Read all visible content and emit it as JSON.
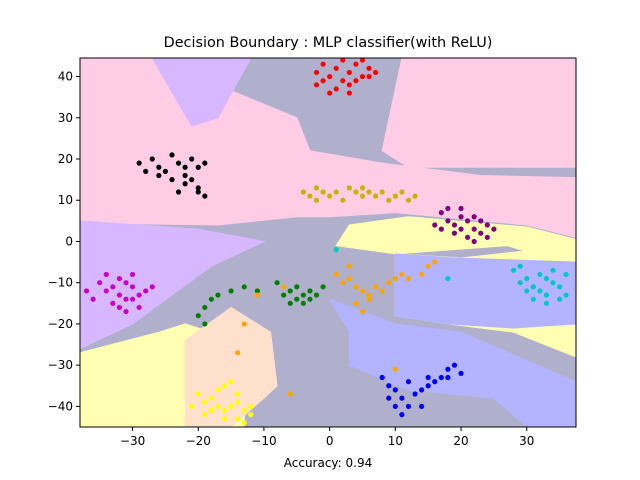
{
  "chart_data": {
    "type": "scatter",
    "title": "Decision Boundary : MLP classifier(with ReLU)",
    "xlabel": "Accuracy: 0.94",
    "ylabel": "",
    "xlim": [
      -38,
      37.5
    ],
    "ylim": [
      -45,
      44.5
    ],
    "xticks": [
      -30,
      -20,
      -10,
      0,
      10,
      20,
      30
    ],
    "yticks": [
      -40,
      -30,
      -20,
      -10,
      0,
      10,
      20,
      30,
      40
    ],
    "grid": false,
    "regions": [
      {
        "color": "#b0b0cc",
        "polygon": [
          [
            -38,
            -45
          ],
          [
            37.5,
            -45
          ],
          [
            37.5,
            44.5
          ],
          [
            -38,
            44.5
          ]
        ]
      },
      {
        "color": "#ffcce6",
        "polygon": [
          [
            -38,
            44.5
          ],
          [
            -27,
            44.5
          ],
          [
            -5,
            30
          ],
          [
            -3,
            22
          ],
          [
            8,
            19
          ],
          [
            23,
            16
          ],
          [
            37.5,
            15.5
          ],
          [
            37.5,
            1
          ],
          [
            30,
            4
          ],
          [
            10,
            7
          ],
          [
            0,
            6
          ],
          [
            -5,
            6
          ],
          [
            -17,
            4
          ],
          [
            -38,
            4.5
          ]
        ]
      },
      {
        "color": "#ffcce6",
        "polygon": [
          [
            11,
            44.5
          ],
          [
            37.5,
            44.5
          ],
          [
            37.5,
            18
          ],
          [
            12,
            18
          ],
          [
            8,
            22
          ]
        ]
      },
      {
        "color": "#d7b7ff",
        "polygon": [
          [
            -27,
            44.5
          ],
          [
            -12,
            44.5
          ],
          [
            -17,
            30
          ],
          [
            -21,
            28
          ]
        ]
      },
      {
        "color": "#d7b7ff",
        "polygon": [
          [
            -38,
            5
          ],
          [
            -20,
            3
          ],
          [
            -10,
            0
          ],
          [
            -18,
            -6
          ],
          [
            -30,
            -20
          ],
          [
            -38,
            -26
          ]
        ]
      },
      {
        "color": "#ffffb3",
        "polygon": [
          [
            3,
            4
          ],
          [
            12,
            6
          ],
          [
            30,
            3.5
          ],
          [
            37.5,
            0.5
          ],
          [
            37.5,
            -6
          ],
          [
            27,
            -1
          ],
          [
            10,
            -3
          ],
          [
            1,
            -1
          ]
        ]
      },
      {
        "color": "#ffffb3",
        "polygon": [
          [
            37.5,
            12
          ],
          [
            37.5,
            -1
          ],
          [
            20,
            -4
          ],
          [
            10,
            -3
          ],
          [
            10,
            -18
          ],
          [
            18,
            -20
          ],
          [
            28,
            -22
          ],
          [
            37.5,
            -28
          ]
        ]
      },
      {
        "color": "#ffffb3",
        "polygon": [
          [
            -38,
            -27
          ],
          [
            -26,
            -22
          ],
          [
            -22,
            -20
          ],
          [
            -38,
            -30
          ]
        ]
      },
      {
        "color": "#ffffb3",
        "polygon": [
          [
            -38,
            -30
          ],
          [
            -22,
            -20
          ],
          [
            -18,
            -22
          ],
          [
            -13,
            -40
          ],
          [
            -13,
            -45
          ],
          [
            -38,
            -45
          ]
        ]
      },
      {
        "color": "#ffe0cc",
        "polygon": [
          [
            -22,
            -24
          ],
          [
            -15,
            -16
          ],
          [
            -9,
            -22
          ],
          [
            -8,
            -35
          ],
          [
            -10,
            -38
          ],
          [
            -15,
            -45
          ],
          [
            -22,
            -45
          ]
        ]
      },
      {
        "color": "#b3b3ff",
        "polygon": [
          [
            0,
            -14
          ],
          [
            10,
            -20
          ],
          [
            20,
            -22
          ],
          [
            37.5,
            -34
          ],
          [
            37.5,
            -45
          ],
          [
            30,
            -45
          ],
          [
            25,
            -38
          ],
          [
            12,
            -36
          ],
          [
            3,
            -30
          ],
          [
            3,
            -22
          ]
        ]
      },
      {
        "color": "#b3b3ff",
        "polygon": [
          [
            10,
            -3
          ],
          [
            19,
            -4
          ],
          [
            37.5,
            -5
          ],
          [
            37.5,
            -20
          ],
          [
            28,
            -21
          ],
          [
            18,
            -20
          ],
          [
            10,
            -18
          ]
        ]
      }
    ],
    "series": [
      {
        "color": "#ff0000",
        "points": [
          [
            -2,
            41
          ],
          [
            -1,
            43
          ],
          [
            0,
            40
          ],
          [
            1,
            42
          ],
          [
            2,
            44
          ],
          [
            3,
            41
          ],
          [
            4,
            43
          ],
          [
            5,
            40
          ],
          [
            6,
            42
          ],
          [
            7,
            41
          ],
          [
            -1,
            39
          ],
          [
            1,
            37
          ],
          [
            3,
            38
          ],
          [
            0,
            36
          ],
          [
            2,
            39
          ],
          [
            4,
            39
          ],
          [
            5,
            44
          ],
          [
            6,
            40
          ],
          [
            -2,
            38
          ],
          [
            3,
            36
          ]
        ]
      },
      {
        "color": "#000000",
        "points": [
          [
            -29,
            19
          ],
          [
            -27,
            20
          ],
          [
            -26,
            18
          ],
          [
            -25,
            17
          ],
          [
            -24,
            21
          ],
          [
            -23,
            19
          ],
          [
            -22,
            18
          ],
          [
            -21,
            20
          ],
          [
            -20,
            18
          ],
          [
            -19,
            19
          ],
          [
            -21,
            15
          ],
          [
            -20,
            13
          ],
          [
            -22,
            14
          ],
          [
            -23,
            12
          ],
          [
            -19,
            11
          ],
          [
            -20,
            12
          ],
          [
            -26,
            16
          ],
          [
            -28,
            17
          ],
          [
            -24,
            15
          ],
          [
            -22,
            16
          ]
        ]
      },
      {
        "color": "#c8b400",
        "points": [
          [
            -4,
            12
          ],
          [
            -3,
            11
          ],
          [
            -2,
            10
          ],
          [
            -1,
            12
          ],
          [
            0,
            11
          ],
          [
            1,
            12
          ],
          [
            2,
            10
          ],
          [
            3,
            13
          ],
          [
            4,
            12
          ],
          [
            5,
            13
          ],
          [
            6,
            12
          ],
          [
            7,
            11
          ],
          [
            8,
            12
          ],
          [
            9,
            10
          ],
          [
            10,
            11
          ],
          [
            11,
            12
          ],
          [
            12,
            10
          ],
          [
            13,
            11
          ],
          [
            -2,
            13
          ],
          [
            5,
            11
          ]
        ]
      },
      {
        "color": "#800080",
        "points": [
          [
            17,
            7
          ],
          [
            18,
            5
          ],
          [
            19,
            4
          ],
          [
            20,
            6
          ],
          [
            21,
            5
          ],
          [
            22,
            3
          ],
          [
            23,
            2
          ],
          [
            18,
            8
          ],
          [
            20,
            8
          ],
          [
            22,
            6
          ],
          [
            23,
            5
          ],
          [
            24,
            4
          ],
          [
            21,
            1
          ],
          [
            19,
            2
          ],
          [
            17,
            3
          ],
          [
            16,
            4
          ],
          [
            24,
            1
          ],
          [
            25,
            3
          ],
          [
            20,
            3
          ],
          [
            22,
            0
          ]
        ]
      },
      {
        "color": "#c800c8",
        "points": [
          [
            -35,
            -10
          ],
          [
            -34,
            -12
          ],
          [
            -33,
            -11
          ],
          [
            -32,
            -13
          ],
          [
            -31,
            -10
          ],
          [
            -30,
            -11
          ],
          [
            -29,
            -13
          ],
          [
            -31,
            -14
          ],
          [
            -33,
            -15
          ],
          [
            -32,
            -16
          ],
          [
            -30,
            -14
          ],
          [
            -28,
            -12
          ],
          [
            -34,
            -8
          ],
          [
            -32,
            -9
          ],
          [
            -29,
            -16
          ],
          [
            -27,
            -11
          ],
          [
            -37,
            -12
          ],
          [
            -36,
            -14
          ],
          [
            -31,
            -17
          ],
          [
            -30,
            -8
          ]
        ]
      },
      {
        "color": "#008000",
        "points": [
          [
            -17,
            -13
          ],
          [
            -15,
            -12
          ],
          [
            -13,
            -11
          ],
          [
            -11,
            -12
          ],
          [
            -7,
            -13
          ],
          [
            -6,
            -12
          ],
          [
            -5,
            -11
          ],
          [
            -4,
            -13
          ],
          [
            -6,
            -15
          ],
          [
            -5,
            -14
          ],
          [
            -3,
            -12
          ],
          [
            -2,
            -13
          ],
          [
            -1,
            -11
          ],
          [
            -4,
            -15
          ],
          [
            -3,
            -14
          ],
          [
            -18,
            -14
          ],
          [
            -19,
            -16
          ],
          [
            -20,
            -18
          ],
          [
            -19,
            -20
          ],
          [
            -8,
            -10
          ]
        ]
      },
      {
        "color": "#ffa500",
        "points": [
          [
            1,
            -8
          ],
          [
            2,
            -10
          ],
          [
            3,
            -9
          ],
          [
            4,
            -11
          ],
          [
            5,
            -12
          ],
          [
            6,
            -13
          ],
          [
            7,
            -11
          ],
          [
            8,
            -12
          ],
          [
            9,
            -10
          ],
          [
            10,
            -9
          ],
          [
            11,
            -8
          ],
          [
            12,
            -9
          ],
          [
            14,
            -8
          ],
          [
            15,
            -6
          ],
          [
            16,
            -5
          ],
          [
            3,
            -6
          ],
          [
            4,
            -15
          ],
          [
            5,
            -17
          ],
          [
            6,
            -14
          ],
          [
            -7,
            -11
          ]
        ]
      },
      {
        "color": "#00c8c8",
        "points": [
          [
            28,
            -7
          ],
          [
            29,
            -10
          ],
          [
            30,
            -12
          ],
          [
            31,
            -11
          ],
          [
            32,
            -8
          ],
          [
            33,
            -9
          ],
          [
            34,
            -10
          ],
          [
            35,
            -11
          ],
          [
            36,
            -8
          ],
          [
            31,
            -14
          ],
          [
            33,
            -15
          ],
          [
            35,
            -14
          ],
          [
            29,
            -6
          ],
          [
            32,
            -12
          ],
          [
            34,
            -7
          ],
          [
            36,
            -13
          ],
          [
            30,
            -9
          ],
          [
            33,
            -13
          ],
          [
            1,
            -2
          ],
          [
            18,
            -9
          ]
        ]
      },
      {
        "color": "#0000ff",
        "points": [
          [
            8,
            -33
          ],
          [
            9,
            -35
          ],
          [
            10,
            -36
          ],
          [
            11,
            -38
          ],
          [
            12,
            -34
          ],
          [
            13,
            -37
          ],
          [
            14,
            -36
          ],
          [
            15,
            -35
          ],
          [
            16,
            -34
          ],
          [
            17,
            -33
          ],
          [
            18,
            -31
          ],
          [
            19,
            -30
          ],
          [
            20,
            -32
          ],
          [
            12,
            -40
          ],
          [
            14,
            -40
          ],
          [
            10,
            -40
          ],
          [
            11,
            -42
          ],
          [
            15,
            -33
          ],
          [
            18,
            -33
          ],
          [
            9,
            -38
          ]
        ]
      },
      {
        "color": "#ffff00",
        "points": [
          [
            -20,
            -37
          ],
          [
            -19,
            -39
          ],
          [
            -18,
            -38
          ],
          [
            -17,
            -40
          ],
          [
            -16,
            -41
          ],
          [
            -15,
            -40
          ],
          [
            -14,
            -39
          ],
          [
            -13,
            -41
          ],
          [
            -12,
            -42
          ],
          [
            -17,
            -36
          ],
          [
            -16,
            -35
          ],
          [
            -15,
            -34
          ],
          [
            -14,
            -37
          ],
          [
            -19,
            -42
          ],
          [
            -18,
            -41
          ],
          [
            -16,
            -43
          ],
          [
            -14,
            -43
          ],
          [
            -13,
            -44
          ],
          [
            -21,
            -40
          ],
          [
            -12,
            -40
          ]
        ]
      },
      {
        "color": "#ffa500",
        "points": [
          [
            -14,
            -27
          ],
          [
            -6,
            -37
          ],
          [
            -13,
            -20
          ],
          [
            10,
            -31
          ],
          [
            -11,
            -13
          ]
        ]
      }
    ]
  }
}
